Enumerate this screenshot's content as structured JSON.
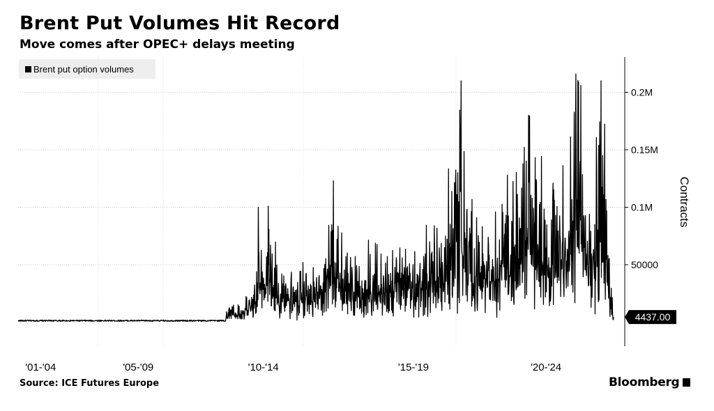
{
  "header": {
    "title": "Brent Put Volumes Hit Record",
    "subtitle": "Move comes after OPEC+ delays meeting"
  },
  "footer": {
    "source": "Source: ICE Futures Europe",
    "brand": "Bloomberg"
  },
  "chart_data": {
    "type": "line",
    "title": "Brent Put Volumes Hit Record",
    "subtitle": "Move comes after OPEC+ delays meeting",
    "ylabel": "Contracts",
    "y_axis_side": "right",
    "ylim": [
      -20000,
      230000
    ],
    "xlim": [
      2001.0,
      2024.8
    ],
    "y_ticks": [
      {
        "value": 50000,
        "label": "50000"
      },
      {
        "value": 100000,
        "label": "0.1M"
      },
      {
        "value": 150000,
        "label": "0.15M"
      },
      {
        "value": 200000,
        "label": "0.2M"
      }
    ],
    "x_ticks": [
      {
        "value": 2001.9,
        "label": "'01-'04"
      },
      {
        "value": 2005.8,
        "label": "'05-'09"
      },
      {
        "value": 2010.8,
        "label": "'10-'14"
      },
      {
        "value": 2016.8,
        "label": "'15-'19"
      },
      {
        "value": 2022.1,
        "label": "'20-'24"
      }
    ],
    "x_gridlines": [
      2004.2,
      2006.8,
      2012.4,
      2018.5
    ],
    "grid": true,
    "legend_position": "top-left",
    "last_value_label": "4437.00",
    "last_value": 4437,
    "series_color": "#000000",
    "series": [
      {
        "name": "Brent put option volumes",
        "points": [
          [
            2001.0,
            500
          ],
          [
            2003.0,
            800
          ],
          [
            2004.2,
            3500
          ],
          [
            2005.0,
            1200
          ],
          [
            2005.4,
            9000
          ],
          [
            2005.8,
            1500
          ],
          [
            2007.0,
            1000
          ],
          [
            2008.5,
            3000
          ],
          [
            2009.0,
            8000
          ],
          [
            2009.5,
            14000
          ],
          [
            2010.0,
            22000
          ],
          [
            2010.4,
            35000
          ],
          [
            2010.6,
            100000
          ],
          [
            2010.8,
            42000
          ],
          [
            2011.0,
            101000
          ],
          [
            2011.5,
            38000
          ],
          [
            2012.0,
            45000
          ],
          [
            2013.0,
            48000
          ],
          [
            2013.6,
            123000
          ],
          [
            2014.0,
            55000
          ],
          [
            2015.0,
            60000
          ],
          [
            2016.0,
            68000
          ],
          [
            2017.0,
            65000
          ],
          [
            2017.5,
            75000
          ],
          [
            2018.0,
            80000
          ],
          [
            2018.7,
            210000
          ],
          [
            2019.0,
            100000
          ],
          [
            2019.5,
            85000
          ],
          [
            2020.0,
            115000
          ],
          [
            2020.5,
            120000
          ],
          [
            2021.0,
            110000
          ],
          [
            2021.4,
            180000
          ],
          [
            2021.8,
            135000
          ],
          [
            2022.2,
            100000
          ],
          [
            2022.5,
            125000
          ],
          [
            2023.0,
            135000
          ],
          [
            2023.4,
            209000
          ],
          [
            2023.8,
            125000
          ],
          [
            2024.1,
            178000
          ],
          [
            2024.3,
            210000
          ],
          [
            2024.8,
            4437
          ]
        ]
      }
    ]
  }
}
